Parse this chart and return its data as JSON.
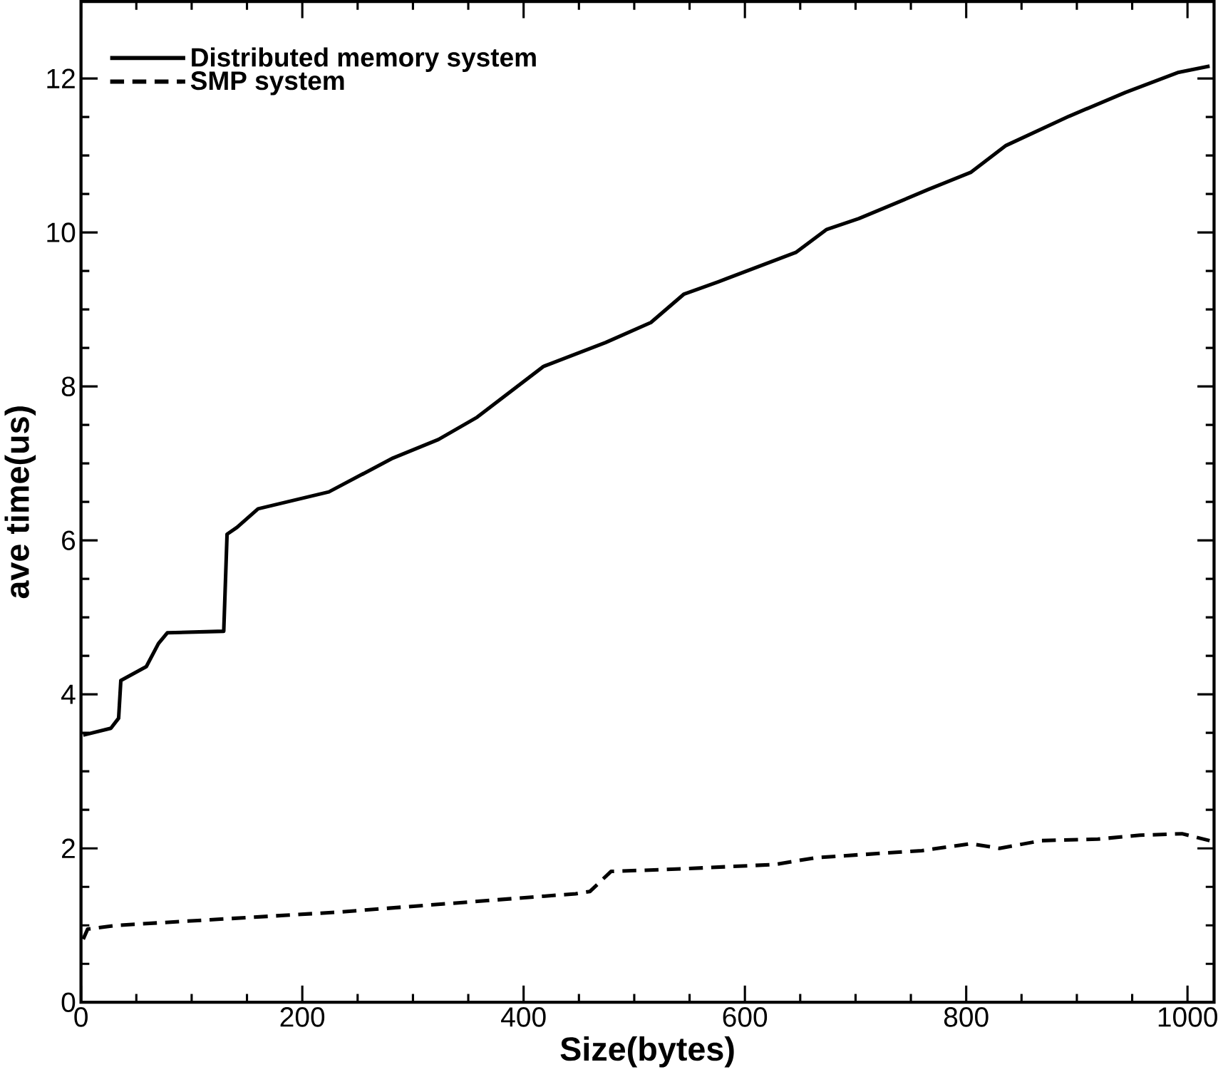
{
  "chart_data": {
    "type": "line",
    "xlabel": "Size(bytes)",
    "ylabel": "ave time(us)",
    "xlim": [
      0,
      1024
    ],
    "ylim": [
      0,
      13
    ],
    "xticks": [
      0,
      200,
      400,
      600,
      800,
      1000
    ],
    "yticks": [
      0,
      2,
      4,
      6,
      8,
      10,
      12
    ],
    "legend": "top left",
    "marker": "none",
    "grid": false,
    "series": [
      {
        "name": "Distributed memory system",
        "color": "#000000",
        "line_style": "solid",
        "x": [
          2,
          27,
          34,
          36,
          59,
          70,
          78,
          129,
          132,
          141,
          160,
          224,
          282,
          323,
          358,
          418,
          474,
          515,
          545,
          576,
          646,
          674,
          703,
          766,
          804,
          836,
          893,
          944,
          992,
          1020
        ],
        "values": [
          3.47,
          3.56,
          3.69,
          4.18,
          4.36,
          4.66,
          4.8,
          4.82,
          6.08,
          6.17,
          6.41,
          6.63,
          7.07,
          7.31,
          7.6,
          8.26,
          8.57,
          8.83,
          9.2,
          9.36,
          9.74,
          10.04,
          10.18,
          10.56,
          10.78,
          11.13,
          11.51,
          11.82,
          12.08,
          12.16
        ]
      },
      {
        "name": "SMP system",
        "color": "#000000",
        "line_style": "dashed",
        "x": [
          2,
          6,
          33,
          231,
          447,
          460,
          479,
          538,
          627,
          665,
          760,
          804,
          830,
          868,
          919,
          957,
          995,
          1020
        ],
        "values": [
          0.82,
          0.95,
          1.0,
          1.17,
          1.41,
          1.44,
          1.7,
          1.73,
          1.79,
          1.88,
          1.97,
          2.06,
          2.0,
          2.1,
          2.12,
          2.17,
          2.19,
          2.1
        ]
      }
    ]
  }
}
